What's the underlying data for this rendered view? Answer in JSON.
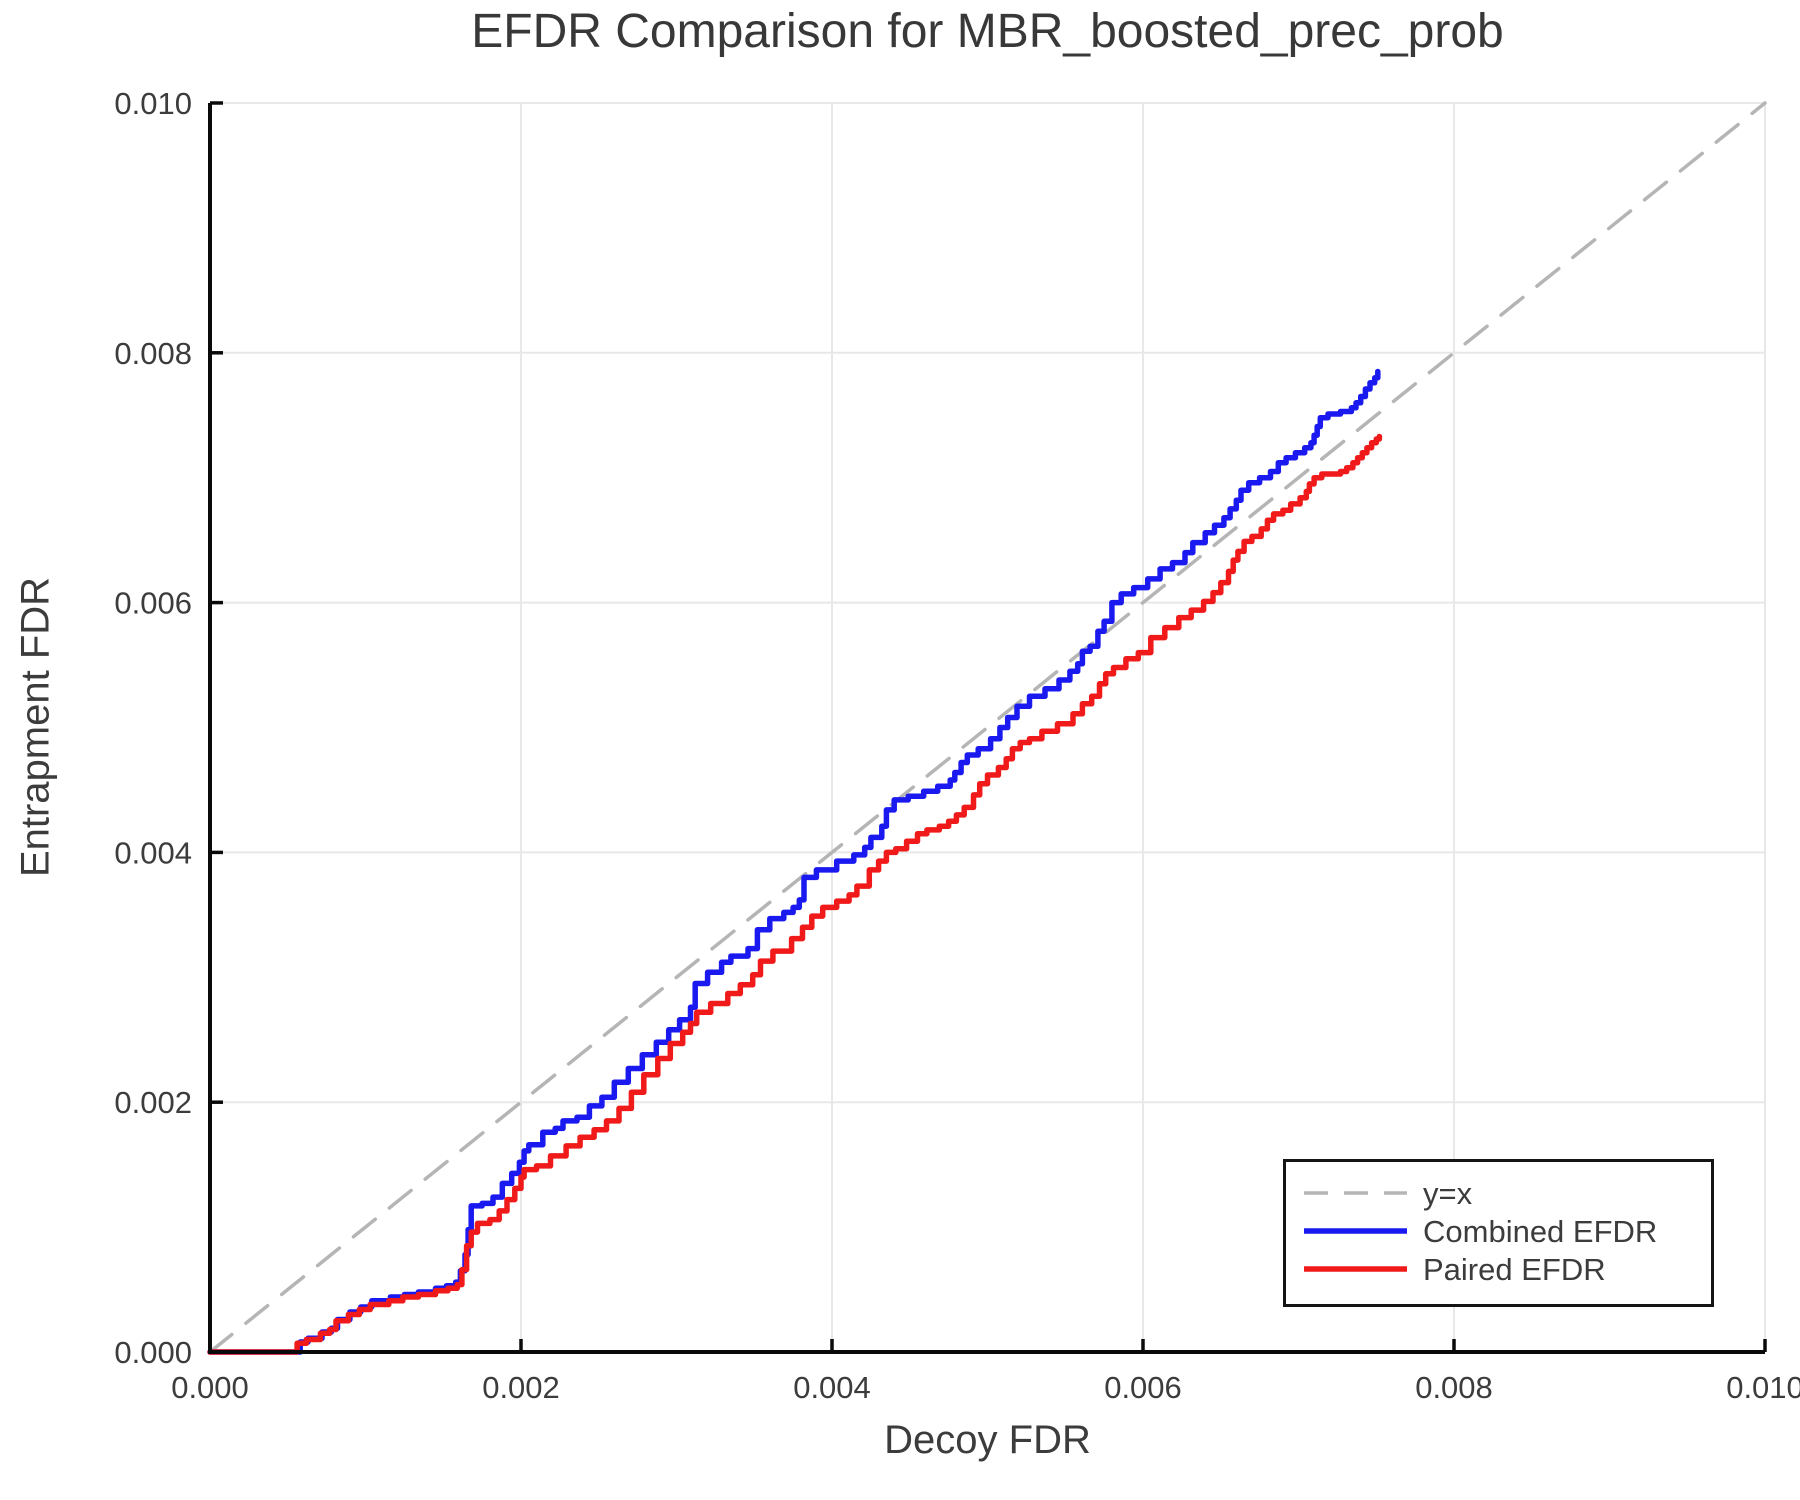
{
  "chart_data": {
    "type": "line",
    "title": "EFDR Comparison for MBR_boosted_prec_prob",
    "xlabel": "Decoy FDR",
    "ylabel": "Entrapment FDR",
    "xlim": [
      0.0,
      0.01
    ],
    "ylim": [
      0.0,
      0.01
    ],
    "grid": true,
    "grid_color": "#e8e8e8",
    "spine_color": "#0a0a0a",
    "text_color": "#3c3c3c",
    "x_tick_labels": [
      "0.000",
      "0.002",
      "0.004",
      "0.006",
      "0.008",
      "0.010"
    ],
    "y_tick_labels": [
      "0.000",
      "0.002",
      "0.004",
      "0.006",
      "0.008",
      "0.010"
    ],
    "legend": {
      "position": "lower right"
    },
    "series": [
      {
        "name": "y=x",
        "color": "#b5b5b5",
        "dashed": true,
        "step": false,
        "width": 3.5,
        "points": [
          [
            0.0,
            0.0
          ],
          [
            0.01,
            0.01
          ]
        ]
      },
      {
        "name": "Combined EFDR",
        "color": "#1a1af0",
        "dashed": false,
        "step": true,
        "width": 5.5,
        "points": [
          [
            0.0,
            0.0
          ],
          [
            0.00058,
            0.0
          ],
          [
            0.00058,
            8e-05
          ],
          [
            0.00063,
            0.00011
          ],
          [
            0.00072,
            0.00016
          ],
          [
            0.00078,
            0.00019
          ],
          [
            0.00082,
            0.00026
          ],
          [
            0.0009,
            0.00032
          ],
          [
            0.00097,
            0.00036
          ],
          [
            0.00104,
            0.00041
          ],
          [
            0.00116,
            0.00044
          ],
          [
            0.00125,
            0.00046
          ],
          [
            0.00134,
            0.00048
          ],
          [
            0.00145,
            0.00051
          ],
          [
            0.00152,
            0.00053
          ],
          [
            0.00158,
            0.00056
          ],
          [
            0.00161,
            0.00065
          ],
          [
            0.00164,
            0.00078
          ],
          [
            0.00166,
            0.00098
          ],
          [
            0.00168,
            0.00117
          ],
          [
            0.00175,
            0.00119
          ],
          [
            0.00182,
            0.00124
          ],
          [
            0.00188,
            0.00135
          ],
          [
            0.00194,
            0.00143
          ],
          [
            0.00199,
            0.00152
          ],
          [
            0.00202,
            0.00161
          ],
          [
            0.00205,
            0.00166
          ],
          [
            0.00214,
            0.00176
          ],
          [
            0.00222,
            0.00179
          ],
          [
            0.00227,
            0.00185
          ],
          [
            0.00236,
            0.00188
          ],
          [
            0.00244,
            0.00197
          ],
          [
            0.00252,
            0.00204
          ],
          [
            0.0026,
            0.00216
          ],
          [
            0.00269,
            0.00227
          ],
          [
            0.00278,
            0.00238
          ],
          [
            0.00287,
            0.00248
          ],
          [
            0.00295,
            0.00258
          ],
          [
            0.00302,
            0.00266
          ],
          [
            0.00309,
            0.00276
          ],
          [
            0.00312,
            0.00295
          ],
          [
            0.0032,
            0.00304
          ],
          [
            0.00329,
            0.00312
          ],
          [
            0.00335,
            0.00317
          ],
          [
            0.00346,
            0.00323
          ],
          [
            0.00352,
            0.00338
          ],
          [
            0.0036,
            0.00347
          ],
          [
            0.00369,
            0.00352
          ],
          [
            0.00375,
            0.00356
          ],
          [
            0.00379,
            0.00362
          ],
          [
            0.00382,
            0.0038
          ],
          [
            0.0039,
            0.00386
          ],
          [
            0.00403,
            0.00393
          ],
          [
            0.00414,
            0.00398
          ],
          [
            0.00421,
            0.00404
          ],
          [
            0.00425,
            0.00412
          ],
          [
            0.00432,
            0.00421
          ],
          [
            0.00435,
            0.00434
          ],
          [
            0.0044,
            0.00442
          ],
          [
            0.00449,
            0.00445
          ],
          [
            0.00459,
            0.00449
          ],
          [
            0.00468,
            0.00453
          ],
          [
            0.00476,
            0.00458
          ],
          [
            0.00479,
            0.00464
          ],
          [
            0.00483,
            0.00472
          ],
          [
            0.00487,
            0.00478
          ],
          [
            0.00494,
            0.00483
          ],
          [
            0.00502,
            0.00491
          ],
          [
            0.00508,
            0.005
          ],
          [
            0.00513,
            0.00508
          ],
          [
            0.00519,
            0.00517
          ],
          [
            0.00527,
            0.00525
          ],
          [
            0.00537,
            0.00531
          ],
          [
            0.00546,
            0.00538
          ],
          [
            0.00553,
            0.00545
          ],
          [
            0.00558,
            0.00551
          ],
          [
            0.00561,
            0.00561
          ],
          [
            0.00566,
            0.00565
          ],
          [
            0.00571,
            0.00577
          ],
          [
            0.00575,
            0.00585
          ],
          [
            0.0058,
            0.006
          ],
          [
            0.00586,
            0.00607
          ],
          [
            0.00594,
            0.00612
          ],
          [
            0.00603,
            0.00619
          ],
          [
            0.00611,
            0.00627
          ],
          [
            0.00619,
            0.00632
          ],
          [
            0.00627,
            0.0064
          ],
          [
            0.00632,
            0.00648
          ],
          [
            0.0064,
            0.00656
          ],
          [
            0.00646,
            0.00662
          ],
          [
            0.00652,
            0.00668
          ],
          [
            0.00656,
            0.00675
          ],
          [
            0.0066,
            0.00682
          ],
          [
            0.00663,
            0.0069
          ],
          [
            0.00668,
            0.00696
          ],
          [
            0.00675,
            0.007
          ],
          [
            0.00682,
            0.00705
          ],
          [
            0.00687,
            0.00712
          ],
          [
            0.00692,
            0.00716
          ],
          [
            0.00698,
            0.0072
          ],
          [
            0.00704,
            0.00724
          ],
          [
            0.00708,
            0.00728
          ],
          [
            0.0071,
            0.00734
          ],
          [
            0.00712,
            0.00741
          ],
          [
            0.00714,
            0.00748
          ],
          [
            0.00719,
            0.00751
          ],
          [
            0.00727,
            0.00753
          ],
          [
            0.00734,
            0.00756
          ],
          [
            0.00737,
            0.0076
          ],
          [
            0.0074,
            0.00765
          ],
          [
            0.00743,
            0.00771
          ],
          [
            0.00746,
            0.00776
          ],
          [
            0.00749,
            0.0078
          ],
          [
            0.00751,
            0.00785
          ]
        ]
      },
      {
        "name": "Paired EFDR",
        "color": "#f01a1a",
        "dashed": false,
        "step": true,
        "width": 5.5,
        "points": [
          [
            0.0,
            0.0
          ],
          [
            0.00056,
            0.0
          ],
          [
            0.00056,
            7e-05
          ],
          [
            0.00062,
            0.0001
          ],
          [
            0.00071,
            0.00015
          ],
          [
            0.00077,
            0.00018
          ],
          [
            0.00081,
            0.00025
          ],
          [
            0.00089,
            0.0003
          ],
          [
            0.00096,
            0.00034
          ],
          [
            0.00103,
            0.00038
          ],
          [
            0.00115,
            0.00041
          ],
          [
            0.00124,
            0.00044
          ],
          [
            0.00134,
            0.00046
          ],
          [
            0.00145,
            0.00049
          ],
          [
            0.00153,
            0.00051
          ],
          [
            0.00159,
            0.00054
          ],
          [
            0.00162,
            0.00066
          ],
          [
            0.00165,
            0.00085
          ],
          [
            0.00168,
            0.00096
          ],
          [
            0.00172,
            0.00103
          ],
          [
            0.0018,
            0.00106
          ],
          [
            0.00186,
            0.00113
          ],
          [
            0.00191,
            0.00122
          ],
          [
            0.00196,
            0.00131
          ],
          [
            0.002,
            0.0014
          ],
          [
            0.00202,
            0.00146
          ],
          [
            0.0021,
            0.00149
          ],
          [
            0.00219,
            0.00157
          ],
          [
            0.00229,
            0.00165
          ],
          [
            0.00238,
            0.00172
          ],
          [
            0.00247,
            0.00178
          ],
          [
            0.00255,
            0.00185
          ],
          [
            0.00263,
            0.00195
          ],
          [
            0.00271,
            0.00208
          ],
          [
            0.00279,
            0.00222
          ],
          [
            0.00288,
            0.00235
          ],
          [
            0.00296,
            0.00247
          ],
          [
            0.00304,
            0.00256
          ],
          [
            0.00309,
            0.00263
          ],
          [
            0.00313,
            0.00272
          ],
          [
            0.00322,
            0.00279
          ],
          [
            0.00333,
            0.00287
          ],
          [
            0.00341,
            0.00294
          ],
          [
            0.00349,
            0.00302
          ],
          [
            0.00354,
            0.00313
          ],
          [
            0.00362,
            0.00321
          ],
          [
            0.00374,
            0.00331
          ],
          [
            0.00381,
            0.0034
          ],
          [
            0.00387,
            0.00349
          ],
          [
            0.00394,
            0.00356
          ],
          [
            0.00403,
            0.00361
          ],
          [
            0.00411,
            0.00366
          ],
          [
            0.00416,
            0.00373
          ],
          [
            0.00424,
            0.00386
          ],
          [
            0.0043,
            0.00393
          ],
          [
            0.00435,
            0.004
          ],
          [
            0.00441,
            0.00403
          ],
          [
            0.00448,
            0.00409
          ],
          [
            0.00455,
            0.00415
          ],
          [
            0.00461,
            0.00418
          ],
          [
            0.00469,
            0.00421
          ],
          [
            0.00475,
            0.00425
          ],
          [
            0.0048,
            0.0043
          ],
          [
            0.00485,
            0.00436
          ],
          [
            0.00491,
            0.00446
          ],
          [
            0.00495,
            0.00455
          ],
          [
            0.005,
            0.00462
          ],
          [
            0.00507,
            0.00468
          ],
          [
            0.00512,
            0.00475
          ],
          [
            0.00516,
            0.00483
          ],
          [
            0.00521,
            0.00488
          ],
          [
            0.00527,
            0.00491
          ],
          [
            0.00535,
            0.00497
          ],
          [
            0.00545,
            0.00503
          ],
          [
            0.00555,
            0.00511
          ],
          [
            0.00561,
            0.00519
          ],
          [
            0.00567,
            0.00525
          ],
          [
            0.00572,
            0.00535
          ],
          [
            0.00576,
            0.00543
          ],
          [
            0.00581,
            0.00548
          ],
          [
            0.00589,
            0.00555
          ],
          [
            0.00597,
            0.0056
          ],
          [
            0.00605,
            0.00572
          ],
          [
            0.00614,
            0.0058
          ],
          [
            0.00623,
            0.00588
          ],
          [
            0.00631,
            0.00594
          ],
          [
            0.00639,
            0.00601
          ],
          [
            0.00645,
            0.00608
          ],
          [
            0.0065,
            0.00616
          ],
          [
            0.00655,
            0.00625
          ],
          [
            0.00658,
            0.00634
          ],
          [
            0.00661,
            0.00641
          ],
          [
            0.00665,
            0.00649
          ],
          [
            0.0067,
            0.00653
          ],
          [
            0.00676,
            0.00659
          ],
          [
            0.0068,
            0.00666
          ],
          [
            0.00684,
            0.00671
          ],
          [
            0.0069,
            0.00674
          ],
          [
            0.00695,
            0.00679
          ],
          [
            0.00701,
            0.00684
          ],
          [
            0.00705,
            0.00689
          ],
          [
            0.00707,
            0.00695
          ],
          [
            0.0071,
            0.007
          ],
          [
            0.00715,
            0.00703
          ],
          [
            0.00727,
            0.00705
          ],
          [
            0.00731,
            0.00708
          ],
          [
            0.00735,
            0.00712
          ],
          [
            0.00738,
            0.00716
          ],
          [
            0.00741,
            0.0072
          ],
          [
            0.00744,
            0.00724
          ],
          [
            0.00747,
            0.00728
          ],
          [
            0.0075,
            0.00731
          ],
          [
            0.00752,
            0.00733
          ]
        ]
      }
    ]
  }
}
